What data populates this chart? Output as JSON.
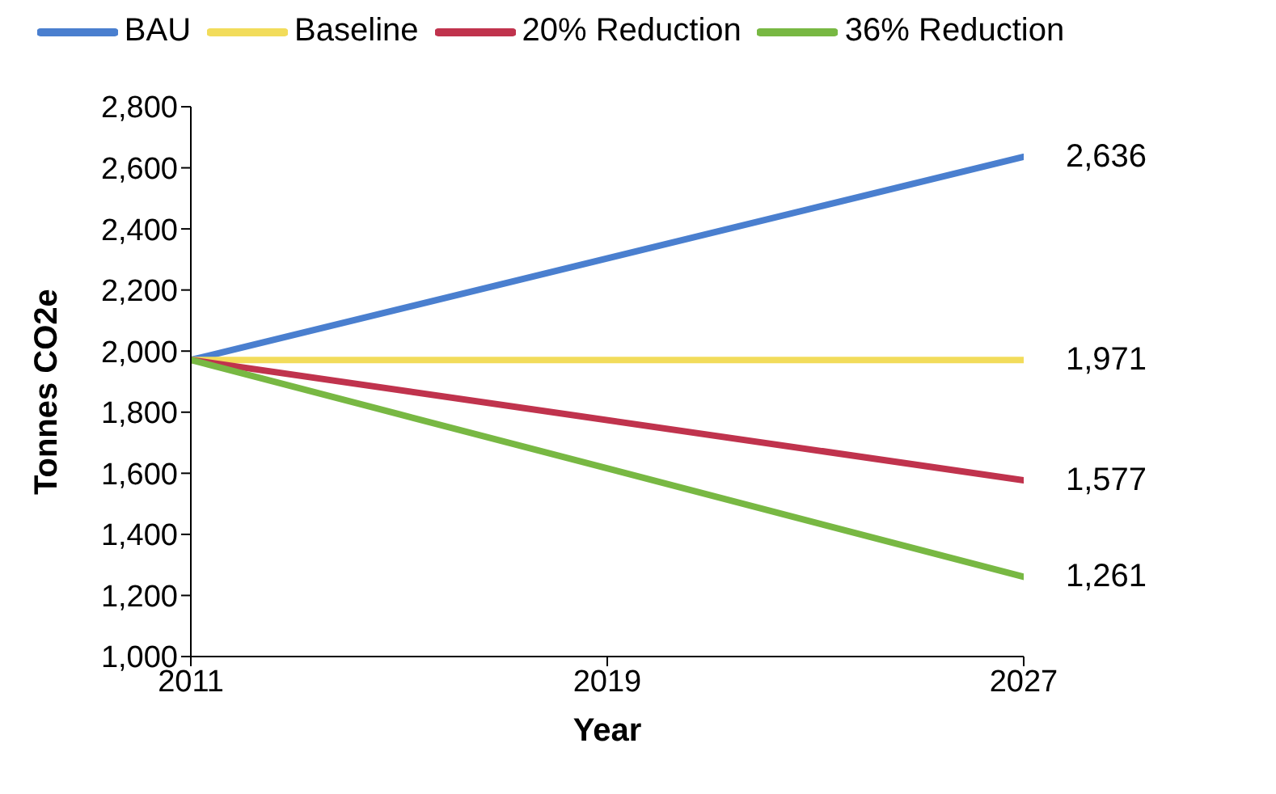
{
  "chart_data": {
    "type": "line",
    "xlabel": "Year",
    "ylabel": "Tonnes CO2e",
    "x": [
      2011,
      2027
    ],
    "xlim": [
      2011,
      2027
    ],
    "xticks": [
      {
        "value": 2011,
        "label": "2011"
      },
      {
        "value": 2019,
        "label": "2019"
      },
      {
        "value": 2027,
        "label": "2027"
      }
    ],
    "ylim": [
      1000,
      2800
    ],
    "yticks": [
      {
        "value": 1000,
        "label": "1,000"
      },
      {
        "value": 1200,
        "label": "1,200"
      },
      {
        "value": 1400,
        "label": "1,400"
      },
      {
        "value": 1600,
        "label": "1,600"
      },
      {
        "value": 1800,
        "label": "1,800"
      },
      {
        "value": 2000,
        "label": "2,000"
      },
      {
        "value": 2200,
        "label": "2,200"
      },
      {
        "value": 2400,
        "label": "2,400"
      },
      {
        "value": 2600,
        "label": "2,600"
      },
      {
        "value": 2800,
        "label": "2,800"
      }
    ],
    "grid": false,
    "legend": "top",
    "marker": "none",
    "line_style": "solid",
    "series": [
      {
        "name": "BAU",
        "color": "#4a7fcf",
        "values": [
          1971,
          2636
        ],
        "value_labels": [
          null,
          "2,636"
        ]
      },
      {
        "name": "Baseline",
        "color": "#f2dc5b",
        "values": [
          1971,
          1971
        ],
        "value_labels": [
          null,
          "1,971"
        ]
      },
      {
        "name": "20% Reduction",
        "color": "#c0334d",
        "values": [
          1971,
          1577
        ],
        "value_labels": [
          null,
          "1,577"
        ]
      },
      {
        "name": "36% Reduction",
        "color": "#78b843",
        "values": [
          1971,
          1261
        ],
        "value_labels": [
          null,
          "1,261"
        ]
      }
    ]
  }
}
